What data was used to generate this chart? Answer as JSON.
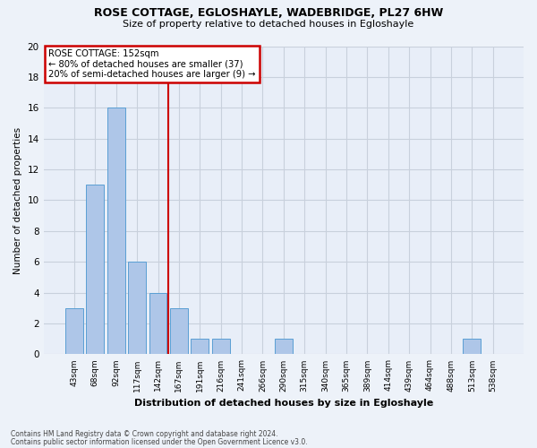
{
  "title1": "ROSE COTTAGE, EGLOSHAYLE, WADEBRIDGE, PL27 6HW",
  "title2": "Size of property relative to detached houses in Egloshayle",
  "xlabel": "Distribution of detached houses by size in Egloshayle",
  "ylabel": "Number of detached properties",
  "footnote1": "Contains HM Land Registry data © Crown copyright and database right 2024.",
  "footnote2": "Contains public sector information licensed under the Open Government Licence v3.0.",
  "annotation_line1": "ROSE COTTAGE: 152sqm",
  "annotation_line2": "← 80% of detached houses are smaller (37)",
  "annotation_line3": "20% of semi-detached houses are larger (9) →",
  "bar_labels": [
    "43sqm",
    "68sqm",
    "92sqm",
    "117sqm",
    "142sqm",
    "167sqm",
    "191sqm",
    "216sqm",
    "241sqm",
    "266sqm",
    "290sqm",
    "315sqm",
    "340sqm",
    "365sqm",
    "389sqm",
    "414sqm",
    "439sqm",
    "464sqm",
    "488sqm",
    "513sqm",
    "538sqm"
  ],
  "bar_values": [
    3,
    11,
    16,
    6,
    4,
    3,
    1,
    1,
    0,
    0,
    1,
    0,
    0,
    0,
    0,
    0,
    0,
    0,
    0,
    1,
    0
  ],
  "bar_color": "#aec6e8",
  "bar_edge_color": "#5a9fd4",
  "property_line_x": 4.5,
  "ylim": [
    0,
    20
  ],
  "yticks": [
    0,
    2,
    4,
    6,
    8,
    10,
    12,
    14,
    16,
    18,
    20
  ],
  "background_color": "#edf2f9",
  "plot_bg_color": "#e8eef8",
  "annotation_box_color": "#ffffff",
  "annotation_box_edge": "#cc0000",
  "vline_color": "#cc0000",
  "grid_color": "#c8d0dc"
}
